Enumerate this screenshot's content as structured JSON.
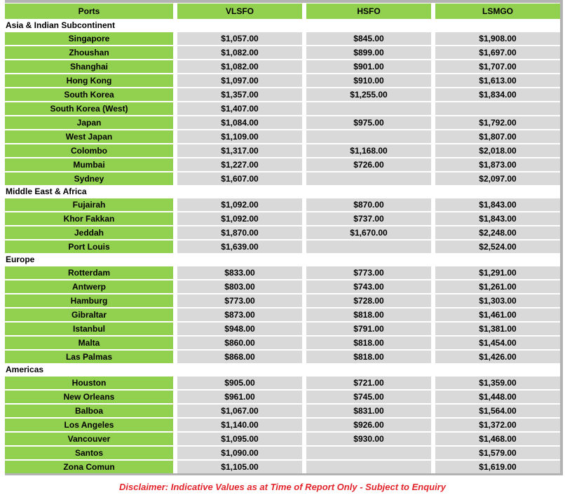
{
  "table": {
    "columns": [
      "Ports",
      "VLSFO",
      "HSFO",
      "LSMGO"
    ],
    "sections": [
      {
        "name": "Asia & Indian Subcontinent",
        "rows": [
          {
            "port": "Singapore",
            "values": [
              "$1,057.00",
              "$845.00",
              "$1,908.00"
            ]
          },
          {
            "port": "Zhoushan",
            "values": [
              "$1,082.00",
              "$899.00",
              "$1,697.00"
            ]
          },
          {
            "port": "Shanghai",
            "values": [
              "$1,082.00",
              "$901.00",
              "$1,707.00"
            ]
          },
          {
            "port": "Hong Kong",
            "values": [
              "$1,097.00",
              "$910.00",
              "$1,613.00"
            ]
          },
          {
            "port": "South Korea",
            "values": [
              "$1,357.00",
              "$1,255.00",
              "$1,834.00"
            ]
          },
          {
            "port": "South Korea (West)",
            "values": [
              "$1,407.00",
              "",
              ""
            ]
          },
          {
            "port": "Japan",
            "values": [
              "$1,084.00",
              "$975.00",
              "$1,792.00"
            ]
          },
          {
            "port": "West Japan",
            "values": [
              "$1,109.00",
              "",
              "$1,807.00"
            ]
          },
          {
            "port": "Colombo",
            "values": [
              "$1,317.00",
              "$1,168.00",
              "$2,018.00"
            ]
          },
          {
            "port": "Mumbai",
            "values": [
              "$1,227.00",
              "$726.00",
              "$1,873.00"
            ]
          },
          {
            "port": "Sydney",
            "values": [
              "$1,607.00",
              "",
              "$2,097.00"
            ]
          }
        ]
      },
      {
        "name": "Middle East & Africa",
        "rows": [
          {
            "port": "Fujairah",
            "values": [
              "$1,092.00",
              "$870.00",
              "$1,843.00"
            ]
          },
          {
            "port": "Khor Fakkan",
            "values": [
              "$1,092.00",
              "$737.00",
              "$1,843.00"
            ]
          },
          {
            "port": "Jeddah",
            "values": [
              "$1,870.00",
              "$1,670.00",
              "$2,248.00"
            ]
          },
          {
            "port": "Port Louis",
            "values": [
              "$1,639.00",
              "",
              "$2,524.00"
            ]
          }
        ]
      },
      {
        "name": "Europe",
        "rows": [
          {
            "port": "Rotterdam",
            "values": [
              "$833.00",
              "$773.00",
              "$1,291.00"
            ]
          },
          {
            "port": "Antwerp",
            "values": [
              "$803.00",
              "$743.00",
              "$1,261.00"
            ]
          },
          {
            "port": "Hamburg",
            "values": [
              "$773.00",
              "$728.00",
              "$1,303.00"
            ]
          },
          {
            "port": "Gibraltar",
            "values": [
              "$873.00",
              "$818.00",
              "$1,461.00"
            ]
          },
          {
            "port": "Istanbul",
            "values": [
              "$948.00",
              "$791.00",
              "$1,381.00"
            ]
          },
          {
            "port": "Malta",
            "values": [
              "$860.00",
              "$818.00",
              "$1,454.00"
            ]
          },
          {
            "port": "Las Palmas",
            "values": [
              "$868.00",
              "$818.00",
              "$1,426.00"
            ]
          }
        ]
      },
      {
        "name": "Americas",
        "rows": [
          {
            "port": "Houston",
            "values": [
              "$905.00",
              "$721.00",
              "$1,359.00"
            ]
          },
          {
            "port": "New Orleans",
            "values": [
              "$961.00",
              "$745.00",
              "$1,448.00"
            ]
          },
          {
            "port": "Balboa",
            "values": [
              "$1,067.00",
              "$831.00",
              "$1,564.00"
            ]
          },
          {
            "port": "Los Angeles",
            "values": [
              "$1,140.00",
              "$926.00",
              "$1,372.00"
            ]
          },
          {
            "port": "Vancouver",
            "values": [
              "$1,095.00",
              "$930.00",
              "$1,468.00"
            ]
          },
          {
            "port": "Santos",
            "values": [
              "$1,090.00",
              "",
              "$1,579.00"
            ]
          },
          {
            "port": "Zona Comun",
            "values": [
              "$1,105.00",
              "",
              "$1,619.00"
            ]
          }
        ]
      }
    ]
  },
  "disclaimer": "Disclaimer: Indicative Values as at Time of Report Only - Subject to Enquiry",
  "colors": {
    "green": "#92D050",
    "cell_gray": "#D9D9D9",
    "border_gray": "#B3B3B3",
    "disclaimer_red": "#E2242B"
  }
}
